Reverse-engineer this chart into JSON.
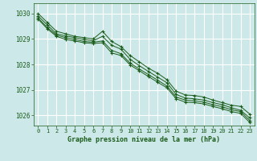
{
  "xlabel": "Graphe pression niveau de la mer (hPa)",
  "bg_color": "#cde8e8",
  "grid_color": "#ffffff",
  "line_color": "#1a5c1a",
  "text_color": "#1a5c1a",
  "xlim": [
    -0.5,
    23.5
  ],
  "ylim": [
    1025.6,
    1030.4
  ],
  "yticks": [
    1026,
    1027,
    1028,
    1029,
    1030
  ],
  "xticks": [
    0,
    1,
    2,
    3,
    4,
    5,
    6,
    7,
    8,
    9,
    10,
    11,
    12,
    13,
    14,
    15,
    16,
    17,
    18,
    19,
    20,
    21,
    22,
    23
  ],
  "series": [
    [
      1030.0,
      1029.65,
      1029.3,
      1029.2,
      1029.1,
      1029.05,
      1029.0,
      1029.3,
      1028.9,
      1028.7,
      1028.35,
      1028.1,
      1027.85,
      1027.65,
      1027.4,
      1026.95,
      1026.8,
      1026.78,
      1026.72,
      1026.6,
      1026.5,
      1026.4,
      1026.35,
      1026.05
    ],
    [
      1029.9,
      1029.55,
      1029.2,
      1029.12,
      1029.05,
      1028.98,
      1028.93,
      1029.1,
      1028.75,
      1028.6,
      1028.2,
      1027.95,
      1027.72,
      1027.5,
      1027.28,
      1026.82,
      1026.68,
      1026.65,
      1026.6,
      1026.5,
      1026.42,
      1026.3,
      1026.2,
      1025.9
    ],
    [
      1029.82,
      1029.45,
      1029.15,
      1029.05,
      1028.98,
      1028.9,
      1028.87,
      1028.92,
      1028.55,
      1028.42,
      1028.05,
      1027.82,
      1027.6,
      1027.38,
      1027.15,
      1026.72,
      1026.6,
      1026.57,
      1026.52,
      1026.42,
      1026.34,
      1026.22,
      1026.15,
      1025.8
    ],
    [
      1029.78,
      1029.4,
      1029.1,
      1028.98,
      1028.92,
      1028.85,
      1028.82,
      1028.85,
      1028.45,
      1028.35,
      1027.98,
      1027.75,
      1027.52,
      1027.3,
      1027.08,
      1026.65,
      1026.52,
      1026.5,
      1026.45,
      1026.35,
      1026.26,
      1026.15,
      1026.08,
      1025.72
    ]
  ]
}
